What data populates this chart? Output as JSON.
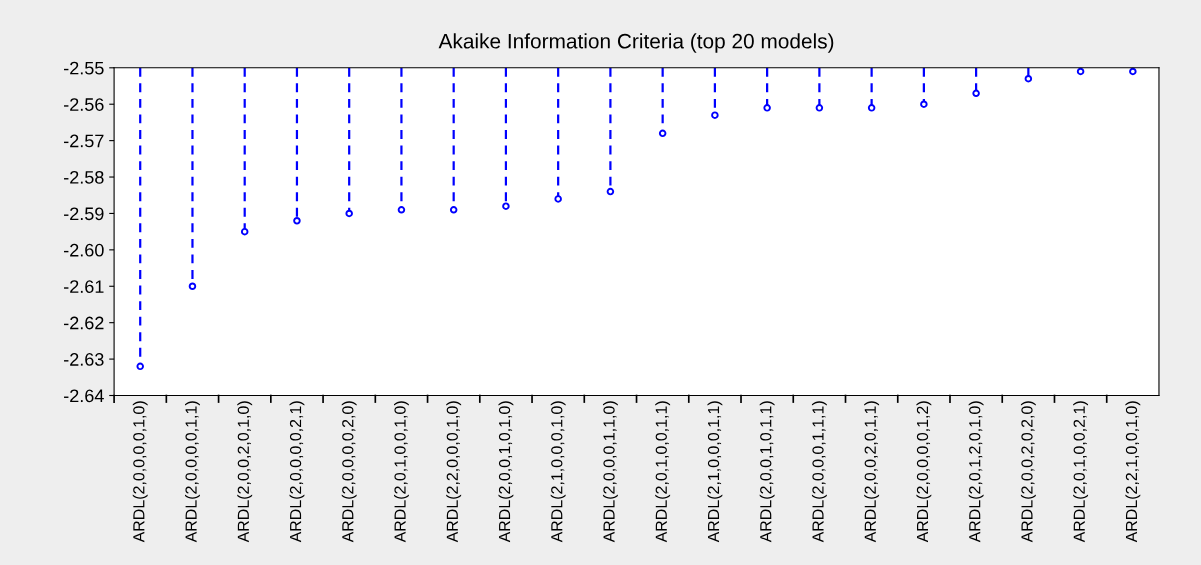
{
  "chart_data": {
    "type": "lollipop",
    "title": "Akaike Information Criteria (top 20 models)",
    "categories": [
      "ARDL(2,0,0,0,0,1,0)",
      "ARDL(2,0,0,0,0,1,1)",
      "ARDL(2,0,0,2,0,1,0)",
      "ARDL(2,0,0,0,0,2,1)",
      "ARDL(2,0,0,0,0,2,0)",
      "ARDL(2,0,1,0,0,1,0)",
      "ARDL(2,2,0,0,0,1,0)",
      "ARDL(2,0,0,1,0,1,0)",
      "ARDL(2,1,0,0,0,1,0)",
      "ARDL(2,0,0,0,1,1,0)",
      "ARDL(2,0,1,0,0,1,1)",
      "ARDL(2,1,0,0,0,1,1)",
      "ARDL(2,0,0,1,0,1,1)",
      "ARDL(2,0,0,0,1,1,1)",
      "ARDL(2,0,0,2,0,1,1)",
      "ARDL(2,0,0,0,0,1,2)",
      "ARDL(2,0,1,2,0,1,0)",
      "ARDL(2,0,0,2,0,2,0)",
      "ARDL(2,0,1,0,0,2,1)",
      "ARDL(2,2,1,0,0,1,0)"
    ],
    "values": [
      -2.632,
      -2.61,
      -2.595,
      -2.592,
      -2.59,
      -2.589,
      -2.589,
      -2.588,
      -2.586,
      -2.584,
      -2.568,
      -2.563,
      -2.561,
      -2.561,
      -2.561,
      -2.56,
      -2.557,
      -2.553,
      -2.551,
      -2.551
    ],
    "color": "#0000ff",
    "ylim": [
      -2.64,
      -2.55
    ],
    "yticks": [
      -2.64,
      -2.63,
      -2.62,
      -2.61,
      {
        "value": -2.6,
        "label": "-2.60"
      },
      -2.59,
      -2.58,
      -2.57,
      -2.56,
      -2.55
    ],
    "grid": false,
    "marker": "circle",
    "line_style": "dashed"
  }
}
